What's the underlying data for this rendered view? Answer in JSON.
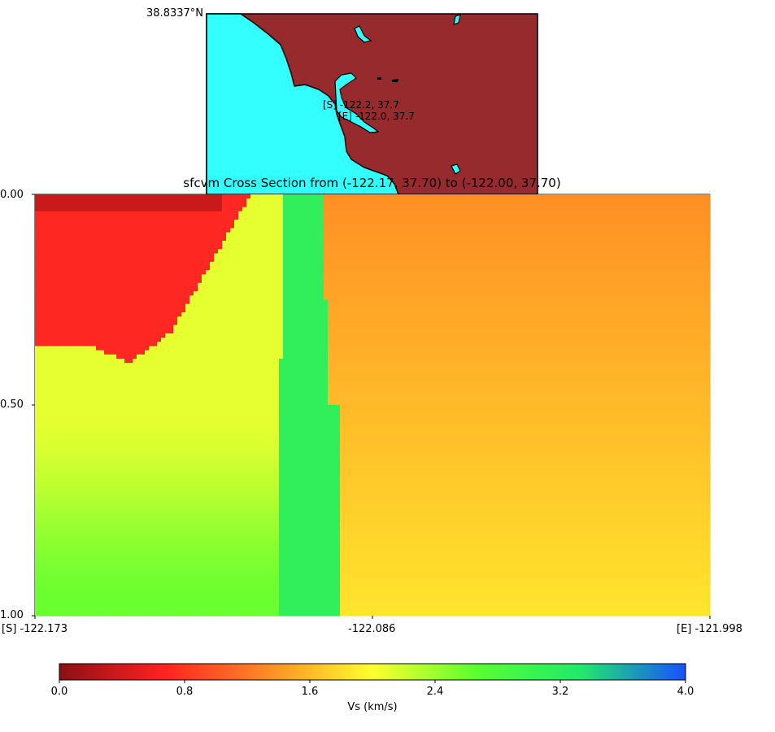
{
  "map": {
    "lat_label": "38.8337°N",
    "start_label": "[S] -122.2, 37.7",
    "end_label": "[E] -122.0, 37.7",
    "ocean_color": "#33ffff",
    "land_color": "#962a2c"
  },
  "chart_data": {
    "type": "heatmap",
    "title": "sfcvm Cross Section from (-122.17, 37.70) to (-122.00, 37.70)",
    "x_tick_labels": [
      "[S] -122.173",
      "-122.086",
      "[E] -121.998"
    ],
    "x_range": [
      -122.173,
      -121.998
    ],
    "y_tick_labels": [
      "0.00",
      "0.50",
      "1.00"
    ],
    "y_range": [
      0.0,
      1.0
    ],
    "grid": false,
    "colorbar": {
      "label": "Vs (km/s)",
      "range": [
        0.0,
        4.0
      ],
      "ticks": [
        "0.0",
        "0.8",
        "1.6",
        "2.4",
        "3.2",
        "4.0"
      ],
      "colors": [
        "#8c0f14",
        "#ff2222",
        "#ff8c24",
        "#ffff30",
        "#58ff30",
        "#22e86c",
        "#1650ff"
      ]
    },
    "regions_vs_km_s": {
      "shallow_basin": 0.7,
      "basin_sediment_top": 2.1,
      "basin_sediment_bottom": 2.6,
      "fast_block": 3.15,
      "east_top": 1.35,
      "east_bottom": 1.85
    }
  }
}
